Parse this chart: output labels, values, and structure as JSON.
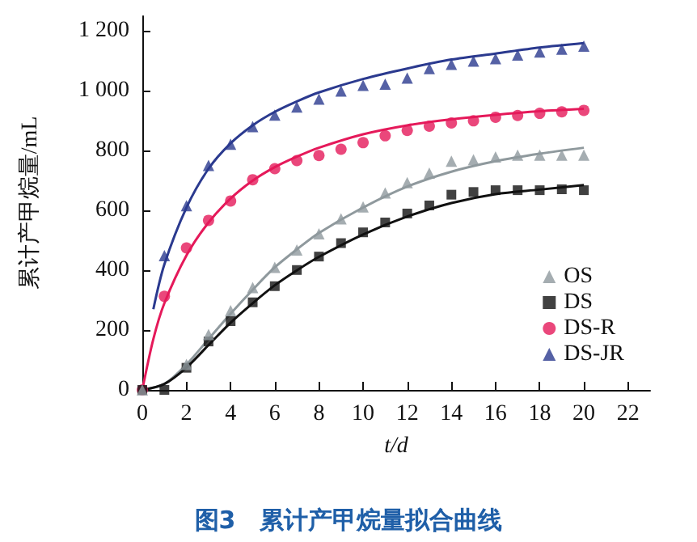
{
  "chart_data": {
    "type": "scatter",
    "xlabel": "t/d",
    "ylabel": "累计产甲烷量/mL",
    "annotations": [
      "图3　累计产甲烷量拟合曲线"
    ],
    "xlim": [
      0,
      23
    ],
    "xticks": [
      0,
      2,
      4,
      6,
      8,
      10,
      12,
      14,
      16,
      18,
      20,
      22
    ],
    "ylim": [
      0,
      1250
    ],
    "yticks": [
      0,
      200,
      400,
      600,
      800,
      {
        "value": 1000,
        "label": "1 000"
      },
      {
        "value": 1200,
        "label": "1 200"
      }
    ],
    "grid": false,
    "legend": "bottom right",
    "series": [
      {
        "name": "OS",
        "marker": "triangle",
        "color": "#8f999d",
        "x": [
          0,
          2,
          3,
          4,
          5,
          6,
          7,
          8,
          9,
          10,
          11,
          12,
          13,
          14,
          15,
          16,
          17,
          18,
          19,
          20
        ],
        "values": [
          0,
          85,
          185,
          265,
          342,
          410,
          468,
          522,
          572,
          612,
          659,
          693,
          725,
          765,
          770,
          779,
          785,
          785,
          785,
          785
        ]
      },
      {
        "name": "DS",
        "marker": "square",
        "color": "#111111",
        "x": [
          0,
          1,
          2,
          3,
          4,
          5,
          6,
          7,
          8,
          9,
          10,
          11,
          12,
          13,
          14,
          15,
          16,
          17,
          18,
          19,
          20
        ],
        "values": [
          0,
          0,
          74,
          162,
          230,
          293,
          347,
          401,
          446,
          491,
          527,
          560,
          590,
          617,
          653,
          662,
          668,
          668,
          668,
          671,
          668
        ]
      },
      {
        "name": "DS-R",
        "marker": "circle",
        "color": "#e5195a",
        "x": [
          0,
          1,
          2,
          3,
          4,
          5,
          6,
          7,
          8,
          9,
          10,
          11,
          12,
          13,
          14,
          15,
          16,
          17,
          18,
          19,
          20
        ],
        "values": [
          0,
          313,
          475,
          567,
          632,
          703,
          740,
          767,
          784,
          805,
          827,
          850,
          868,
          882,
          893,
          900,
          912,
          918,
          925,
          930,
          935
        ]
      },
      {
        "name": "DS-JR",
        "marker": "triangle",
        "color": "#2b3a8f",
        "x": [
          1,
          2,
          3,
          4,
          5,
          6,
          7,
          8,
          9,
          10,
          11,
          12,
          13,
          14,
          15,
          16,
          17,
          18,
          19,
          20
        ],
        "values": [
          449,
          616,
          751,
          822,
          881,
          919,
          946,
          973,
          1000,
          1019,
          1023,
          1043,
          1075,
          1089,
          1100,
          1108,
          1120,
          1130,
          1140,
          1150
        ]
      },
      {
        "type": "line",
        "marker": "none",
        "color": "#8f999d",
        "x": [
          0,
          1,
          2,
          3,
          4,
          5,
          6,
          7,
          8,
          10,
          12,
          14,
          16,
          18,
          20
        ],
        "values": [
          0,
          20,
          85,
          170,
          255,
          335,
          410,
          470,
          525,
          610,
          680,
          730,
          765,
          790,
          810
        ]
      },
      {
        "type": "line",
        "marker": "none",
        "color": "#111111",
        "x": [
          0,
          1,
          2,
          3,
          4,
          5,
          6,
          7,
          8,
          10,
          12,
          14,
          16,
          18,
          20
        ],
        "values": [
          0,
          20,
          75,
          150,
          225,
          290,
          350,
          400,
          445,
          520,
          580,
          625,
          655,
          670,
          685
        ]
      },
      {
        "type": "line",
        "marker": "none",
        "color": "#e5195a",
        "x": [
          0,
          0.5,
          1,
          2,
          3,
          4,
          5,
          6,
          7,
          8,
          10,
          12,
          14,
          16,
          18,
          20
        ],
        "values": [
          0,
          170,
          290,
          450,
          560,
          640,
          700,
          745,
          780,
          810,
          855,
          885,
          905,
          920,
          932,
          940
        ]
      },
      {
        "type": "line",
        "marker": "none",
        "color": "#2b3a8f",
        "x": [
          0.5,
          1,
          2,
          3,
          4,
          5,
          6,
          7,
          8,
          10,
          12,
          14,
          16,
          18,
          20
        ],
        "values": [
          270,
          420,
          610,
          740,
          825,
          885,
          930,
          965,
          995,
          1040,
          1075,
          1105,
          1125,
          1145,
          1160
        ]
      }
    ]
  }
}
